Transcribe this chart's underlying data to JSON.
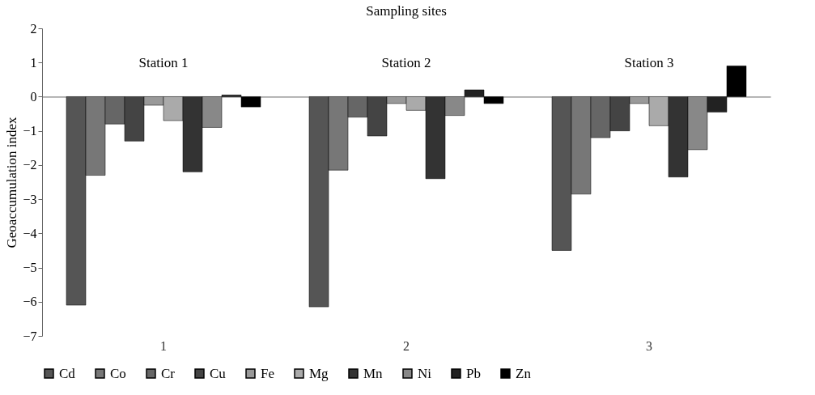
{
  "chart_data": {
    "type": "bar",
    "title": "Sampling sites",
    "ylabel": "Geoaccumulation index",
    "categories": [
      "1",
      "2",
      "3"
    ],
    "series": [
      {
        "name": "Cd",
        "color": "#555555",
        "values": [
          -6.1,
          -6.15,
          -4.5
        ]
      },
      {
        "name": "Co",
        "color": "#777777",
        "values": [
          -2.3,
          -2.15,
          -2.85
        ]
      },
      {
        "name": "Cr",
        "color": "#666666",
        "values": [
          -0.8,
          -0.6,
          -1.2
        ]
      },
      {
        "name": "Cu",
        "color": "#444444",
        "values": [
          -1.3,
          -1.15,
          -1.0
        ]
      },
      {
        "name": "Fe",
        "color": "#999999",
        "values": [
          -0.25,
          -0.2,
          -0.2
        ]
      },
      {
        "name": "Mg",
        "color": "#aaaaaa",
        "values": [
          -0.7,
          -0.4,
          -0.85
        ]
      },
      {
        "name": "Mn",
        "color": "#333333",
        "values": [
          -2.2,
          -2.4,
          -2.35
        ]
      },
      {
        "name": "Ni",
        "color": "#888888",
        "values": [
          -0.9,
          -0.55,
          -1.55
        ]
      },
      {
        "name": "Pb",
        "color": "#222222",
        "values": [
          0.05,
          0.2,
          -0.45
        ]
      },
      {
        "name": "Zn",
        "color": "#000000",
        "values": [
          -0.3,
          -0.2,
          0.9
        ]
      }
    ],
    "annotations": [
      "Station 1",
      "Station 2",
      "Station 3"
    ],
    "ylim": [
      -7,
      2
    ],
    "yticks": [
      -7,
      -6,
      -5,
      -4,
      -3,
      -2,
      -1,
      0,
      1,
      2
    ],
    "legend": "bottom"
  }
}
